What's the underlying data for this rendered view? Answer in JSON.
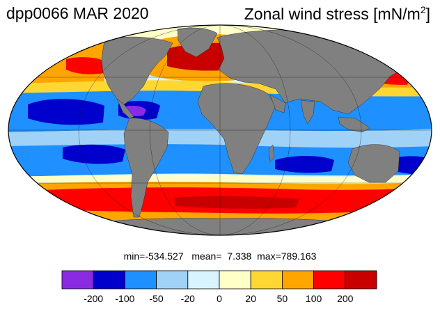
{
  "title": {
    "run_date": "dpp0066 MAR 2020",
    "variable": "Zonal wind stress [mN/m",
    "unit_exponent": "2",
    "unit_close": "]"
  },
  "stats": {
    "min_label": "min=",
    "min": "-534.527",
    "mean_label": "mean=",
    "mean": "7.338",
    "max_label": "max=",
    "max": "789.163"
  },
  "colorbar": {
    "colors": [
      "#8a2be2",
      "#0000cd",
      "#1e90ff",
      "#a0d2f8",
      "#d8f4ff",
      "#ffffc8",
      "#ffd732",
      "#ffa500",
      "#ff0000",
      "#c80000"
    ],
    "tick_labels": [
      "-200",
      "-100",
      "-50",
      "-20",
      "0",
      "20",
      "50",
      "100",
      "200"
    ]
  },
  "map_colors": {
    "land": "#808080",
    "ocean_background": "#d8f4ff"
  }
}
